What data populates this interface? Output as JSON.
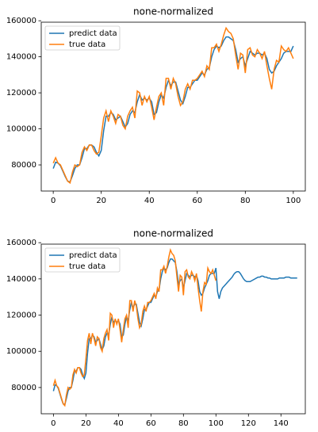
{
  "chart_data": [
    {
      "type": "line",
      "title": "none-normalized",
      "legend": "upper left",
      "grid": false,
      "xlim": [
        -5,
        105
      ],
      "ylim": [
        65500,
        159200
      ],
      "xticks": [
        0,
        20,
        40,
        60,
        80,
        100
      ],
      "yticks": [
        80000,
        100000,
        120000,
        140000,
        160000
      ],
      "x": [
        0,
        1,
        2,
        3,
        4,
        5,
        6,
        7,
        8,
        9,
        10,
        11,
        12,
        13,
        14,
        15,
        16,
        17,
        18,
        19,
        20,
        21,
        22,
        23,
        24,
        25,
        26,
        27,
        28,
        29,
        30,
        31,
        32,
        33,
        34,
        35,
        36,
        37,
        38,
        39,
        40,
        41,
        42,
        43,
        44,
        45,
        46,
        47,
        48,
        49,
        50,
        51,
        52,
        53,
        54,
        55,
        56,
        57,
        58,
        59,
        60,
        61,
        62,
        63,
        64,
        65,
        66,
        67,
        68,
        69,
        70,
        71,
        72,
        73,
        74,
        75,
        76,
        77,
        78,
        79,
        80,
        81,
        82,
        83,
        84,
        85,
        86,
        87,
        88,
        89,
        90,
        91,
        92,
        93,
        94,
        95,
        96,
        97,
        98,
        99,
        100
      ],
      "series": [
        {
          "name": "predict data",
          "color": "#1f77b4",
          "values": [
            78000,
            81500,
            81000,
            79500,
            76500,
            73500,
            71000,
            70500,
            74000,
            78000,
            80000,
            80000,
            84000,
            89000,
            89000,
            91000,
            91000,
            90000,
            87000,
            85000,
            88000,
            99000,
            107000,
            107000,
            109000,
            108000,
            105000,
            106000,
            107000,
            104000,
            101000,
            103000,
            108000,
            110000,
            109000,
            115000,
            119000,
            116000,
            117000,
            116000,
            117000,
            115000,
            108000,
            109000,
            115000,
            119000,
            117000,
            123000,
            127000,
            124000,
            126000,
            126000,
            121000,
            116000,
            114000,
            118000,
            123000,
            123000,
            125000,
            127000,
            127000,
            129000,
            131000,
            130000,
            133000,
            134000,
            140000,
            144000,
            146000,
            145000,
            146000,
            149000,
            151000,
            151000,
            150000,
            149000,
            144000,
            137000,
            139000,
            140000,
            135000,
            139000,
            143000,
            142000,
            141000,
            142000,
            142000,
            141000,
            142000,
            139000,
            133000,
            131000,
            132000,
            135000,
            137000,
            139000,
            142000,
            143000,
            143000,
            143000,
            146000
          ]
        },
        {
          "name": "true data",
          "color": "#ff7f0e",
          "values": [
            81000,
            84000,
            81000,
            80000,
            77000,
            74000,
            71000,
            70000,
            76000,
            80000,
            79000,
            80000,
            87000,
            90000,
            88000,
            91000,
            91000,
            88000,
            86000,
            87000,
            96000,
            106000,
            110000,
            104000,
            110000,
            107000,
            103000,
            108000,
            107000,
            102000,
            100000,
            107000,
            110000,
            112000,
            106000,
            121000,
            120000,
            113000,
            118000,
            115000,
            118000,
            112000,
            105000,
            112000,
            118000,
            120000,
            113000,
            128000,
            128000,
            122000,
            128000,
            125000,
            118000,
            113000,
            115000,
            122000,
            125000,
            122000,
            127000,
            127000,
            128000,
            130000,
            132000,
            129000,
            135000,
            133000,
            145000,
            145000,
            147000,
            143000,
            147000,
            152000,
            156000,
            154000,
            153000,
            150000,
            141000,
            133000,
            142000,
            141000,
            131000,
            144000,
            145000,
            141000,
            140000,
            144000,
            142000,
            139000,
            143000,
            135000,
            128000,
            122000,
            133000,
            138000,
            137000,
            146000,
            144000,
            143000,
            145000,
            142000,
            139000
          ]
        }
      ]
    },
    {
      "type": "line",
      "title": "none-normalized",
      "legend": "upper left",
      "grid": false,
      "xlim": [
        -7.5,
        155
      ],
      "ylim": [
        65500,
        159200
      ],
      "xticks": [
        0,
        20,
        40,
        60,
        80,
        100,
        120,
        140
      ],
      "yticks": [
        80000,
        100000,
        120000,
        140000,
        160000
      ],
      "x": [
        0,
        1,
        2,
        3,
        4,
        5,
        6,
        7,
        8,
        9,
        10,
        11,
        12,
        13,
        14,
        15,
        16,
        17,
        18,
        19,
        20,
        21,
        22,
        23,
        24,
        25,
        26,
        27,
        28,
        29,
        30,
        31,
        32,
        33,
        34,
        35,
        36,
        37,
        38,
        39,
        40,
        41,
        42,
        43,
        44,
        45,
        46,
        47,
        48,
        49,
        50,
        51,
        52,
        53,
        54,
        55,
        56,
        57,
        58,
        59,
        60,
        61,
        62,
        63,
        64,
        65,
        66,
        67,
        68,
        69,
        70,
        71,
        72,
        73,
        74,
        75,
        76,
        77,
        78,
        79,
        80,
        81,
        82,
        83,
        84,
        85,
        86,
        87,
        88,
        89,
        90,
        91,
        92,
        93,
        94,
        95,
        96,
        97,
        98,
        99,
        100,
        101,
        102,
        103,
        104,
        105,
        106,
        107,
        108,
        109,
        110,
        111,
        112,
        113,
        114,
        115,
        116,
        117,
        118,
        119,
        120,
        121,
        122,
        123,
        124,
        125,
        126,
        127,
        128,
        129,
        130,
        131,
        132,
        133,
        134,
        135,
        136,
        137,
        138,
        139,
        140,
        141,
        142,
        143,
        144,
        145,
        146,
        147,
        148,
        149,
        150
      ],
      "series": [
        {
          "name": "predict data",
          "color": "#1f77b4",
          "values": [
            78000,
            81500,
            81000,
            79500,
            76500,
            73500,
            71000,
            70500,
            74000,
            78000,
            80000,
            80000,
            84000,
            89000,
            89000,
            91000,
            91000,
            90000,
            87000,
            85000,
            88000,
            99000,
            107000,
            107000,
            109000,
            108000,
            105000,
            106000,
            107000,
            104000,
            101000,
            103000,
            108000,
            110000,
            109000,
            115000,
            119000,
            116000,
            117000,
            116000,
            117000,
            115000,
            108000,
            109000,
            115000,
            119000,
            117000,
            123000,
            127000,
            124000,
            126000,
            126000,
            121000,
            116000,
            114000,
            118000,
            123000,
            123000,
            125000,
            127000,
            127000,
            129000,
            131000,
            130000,
            133000,
            134000,
            140000,
            144000,
            146000,
            145000,
            146000,
            149000,
            151000,
            151000,
            150000,
            149000,
            144000,
            137000,
            139000,
            140000,
            135000,
            139000,
            143000,
            142000,
            141000,
            142000,
            142000,
            141000,
            142000,
            139000,
            133000,
            131000,
            132000,
            135000,
            137000,
            139000,
            142000,
            143000,
            143000,
            143000,
            146000,
            133000,
            129000,
            133000,
            135000,
            136000,
            137000,
            138000,
            139000,
            140000,
            141000,
            142500,
            143500,
            144000,
            144000,
            143000,
            141500,
            140000,
            139000,
            138500,
            138500,
            138500,
            139000,
            139500,
            140000,
            140500,
            141000,
            141000,
            141500,
            141500,
            141000,
            141000,
            140500,
            140500,
            140000,
            140000,
            140000,
            140000,
            140000,
            140500,
            140500,
            140500,
            140500,
            141000,
            141000,
            141000,
            140500,
            140500,
            140500,
            140500,
            140500
          ]
        },
        {
          "name": "true data",
          "color": "#ff7f0e",
          "values": [
            81000,
            84000,
            81000,
            80000,
            77000,
            74000,
            71000,
            70000,
            76000,
            80000,
            79000,
            80000,
            87000,
            90000,
            88000,
            91000,
            91000,
            88000,
            86000,
            87000,
            96000,
            106000,
            110000,
            104000,
            110000,
            107000,
            103000,
            108000,
            107000,
            102000,
            100000,
            107000,
            110000,
            112000,
            106000,
            121000,
            120000,
            113000,
            118000,
            115000,
            118000,
            112000,
            105000,
            112000,
            118000,
            120000,
            113000,
            128000,
            128000,
            122000,
            128000,
            125000,
            118000,
            113000,
            115000,
            122000,
            125000,
            122000,
            127000,
            127000,
            128000,
            130000,
            132000,
            129000,
            135000,
            133000,
            145000,
            145000,
            147000,
            143000,
            147000,
            152000,
            156000,
            154000,
            153000,
            150000,
            141000,
            133000,
            142000,
            141000,
            131000,
            144000,
            145000,
            141000,
            140000,
            144000,
            142000,
            139000,
            143000,
            135000,
            128000,
            122000,
            133000,
            138000,
            137000,
            146000,
            144000,
            143000,
            145000,
            142000,
            139000,
            null,
            null,
            null,
            null,
            null,
            null,
            null,
            null,
            null,
            null,
            null,
            null,
            null,
            null,
            null,
            null,
            null,
            null,
            null,
            null,
            null,
            null,
            null,
            null,
            null,
            null,
            null,
            null,
            null,
            null,
            null,
            null,
            null,
            null,
            null,
            null,
            null,
            null,
            null,
            null,
            null,
            null,
            null,
            null,
            null,
            null,
            null,
            null,
            null,
            null
          ]
        }
      ]
    }
  ]
}
